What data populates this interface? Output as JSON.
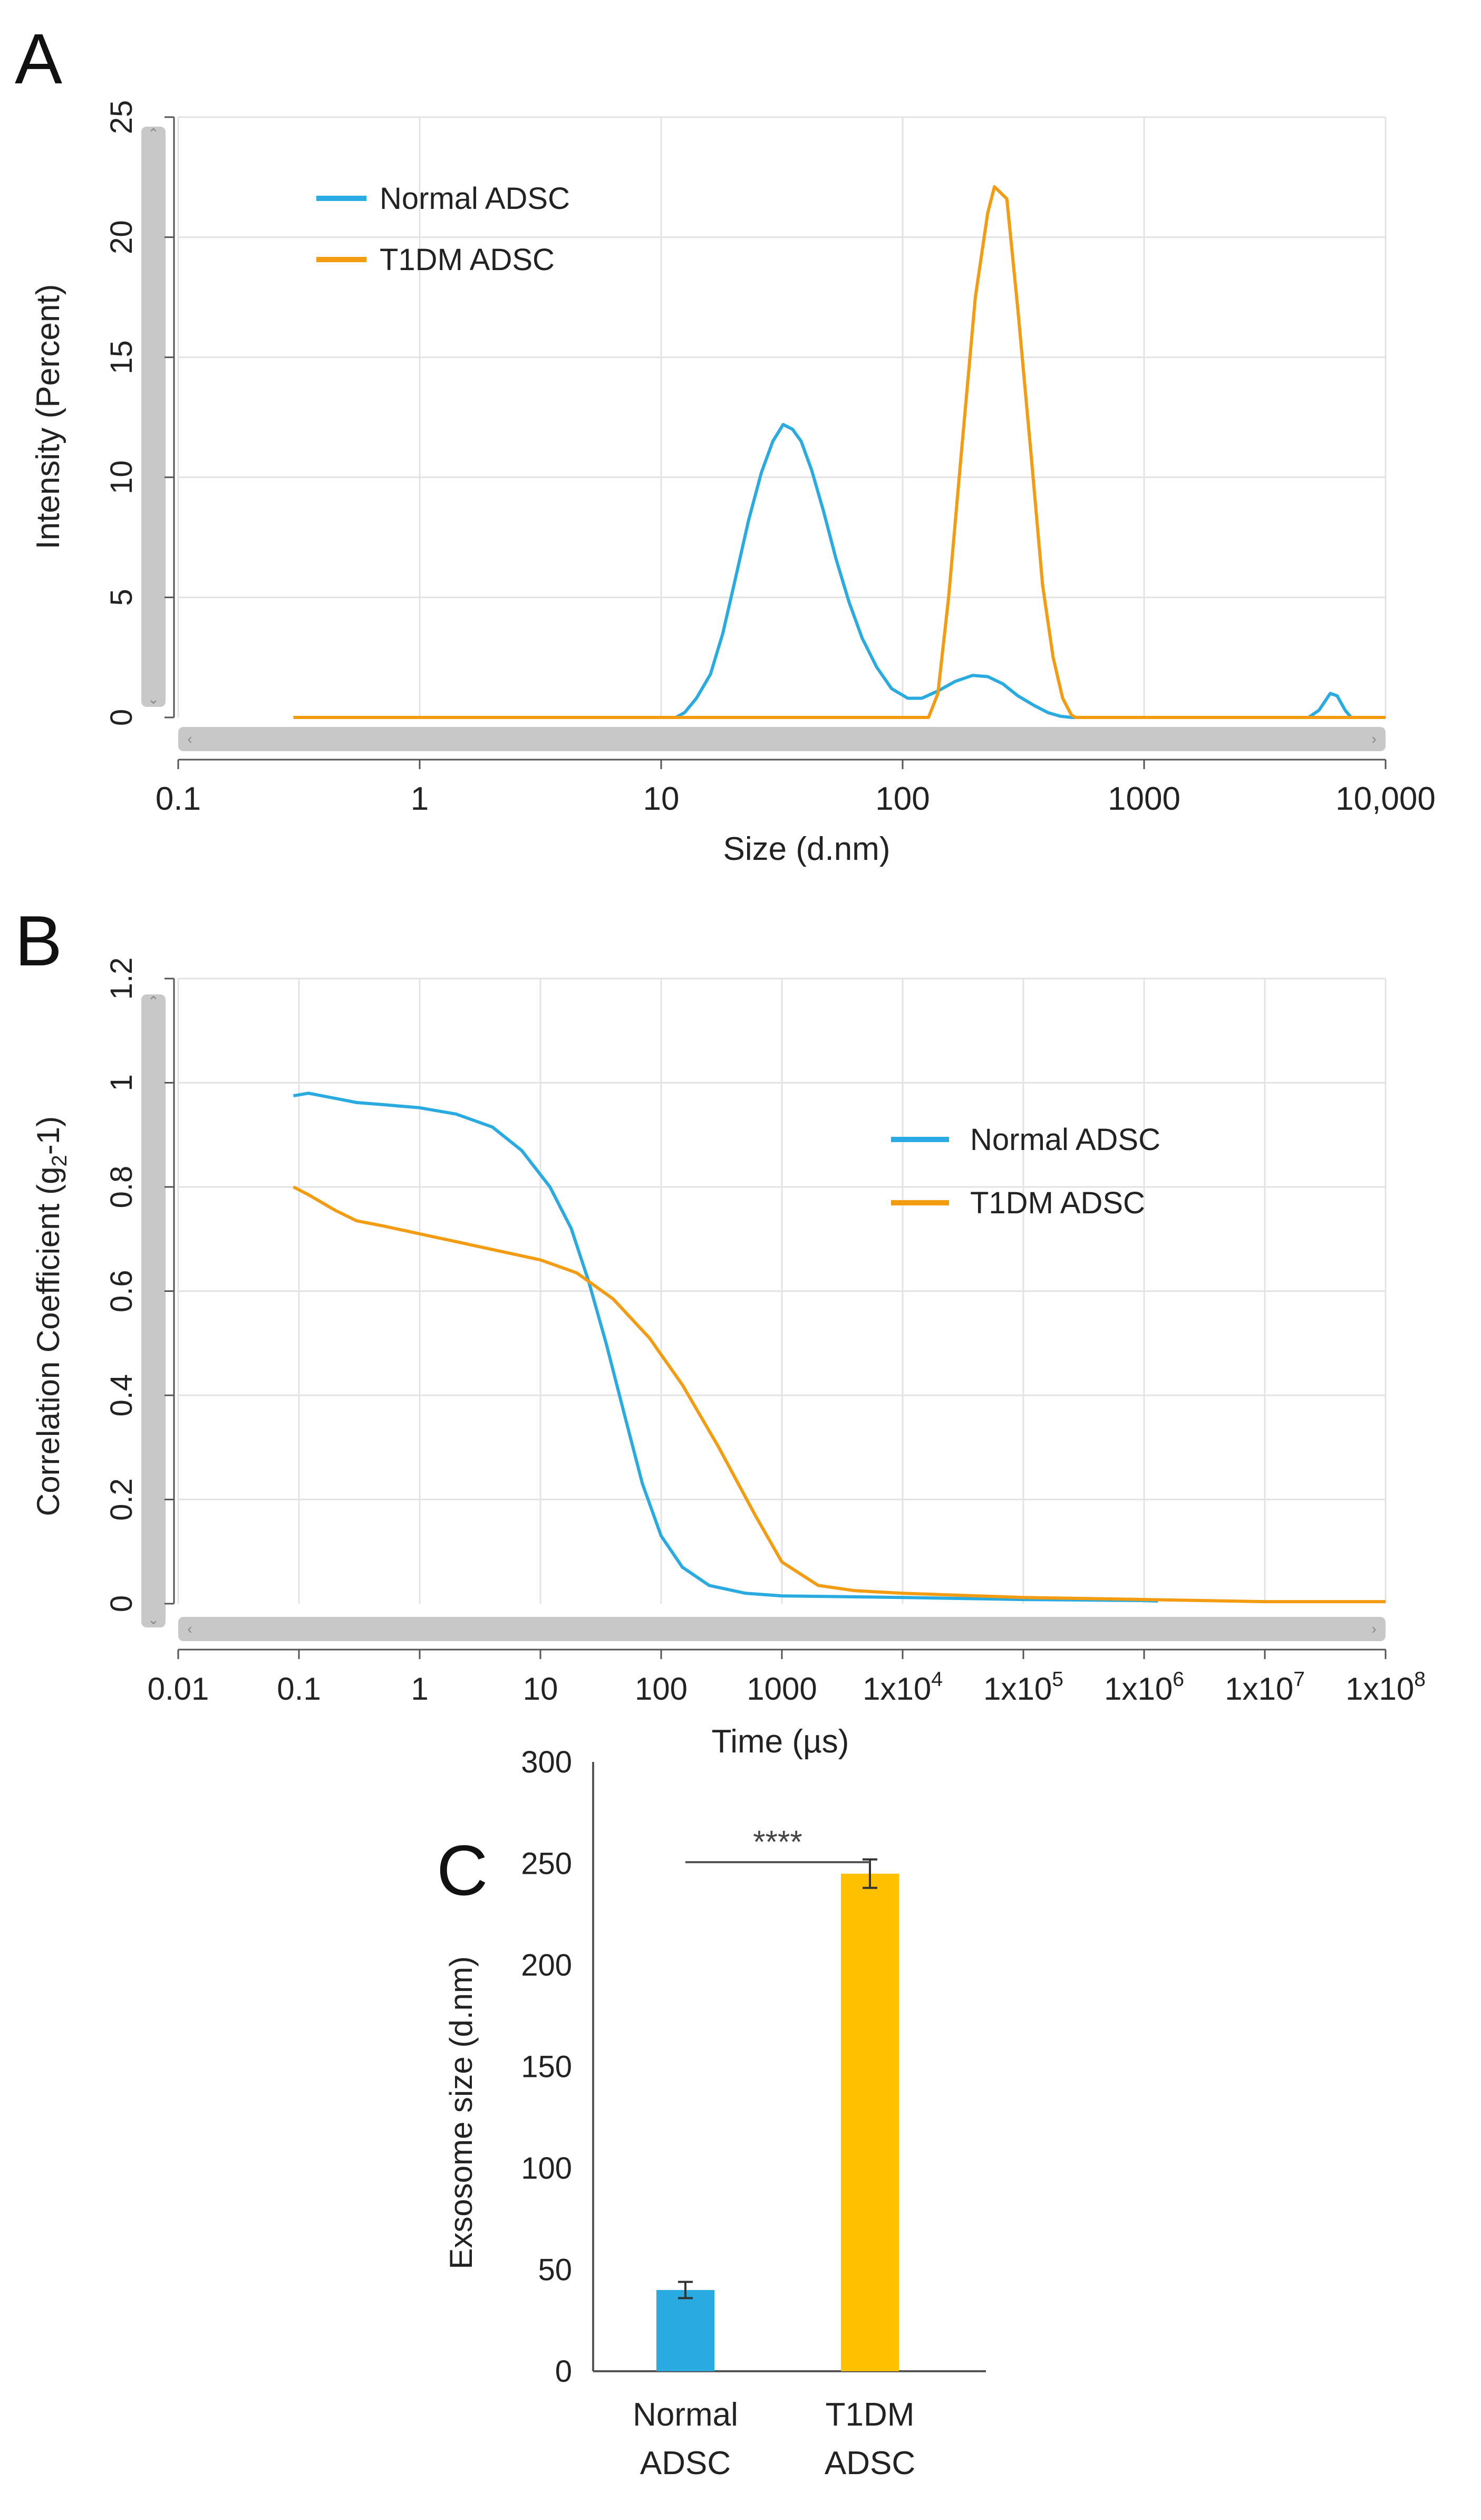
{
  "colors": {
    "normal": "#29ABE2",
    "t1dm": "#F39C12",
    "t1dm_bar": "#FFC000",
    "grid": "#E3E3E3",
    "axis": "#555555",
    "text": "#222222",
    "scrollbar": "#C8C8C8"
  },
  "chart_data": [
    {
      "panel": "A",
      "type": "line",
      "xscale": "log",
      "xlabel": "Size (d.nm)",
      "ylabel": "Intensity (Percent)",
      "xlim": [
        0.1,
        10000
      ],
      "ylim": [
        0,
        25
      ],
      "xticks": [
        0.1,
        1,
        10,
        100,
        1000,
        10000
      ],
      "xtick_labels": [
        "0.1",
        "1",
        "10",
        "100",
        "1000",
        "10,000"
      ],
      "yticks": [
        0,
        5,
        10,
        15,
        20,
        25
      ],
      "ytick_labels": [
        "0",
        "5",
        "10",
        "15",
        "20",
        "25"
      ],
      "legend": "top-left",
      "series": [
        {
          "name": "Normal ADSC",
          "color_key": "normal",
          "points": [
            [
              0.3,
              0
            ],
            [
              11.5,
              0
            ],
            [
              12.5,
              0.2
            ],
            [
              14,
              0.8
            ],
            [
              16,
              1.8
            ],
            [
              18,
              3.5
            ],
            [
              20,
              5.5
            ],
            [
              23,
              8.2
            ],
            [
              26,
              10.2
            ],
            [
              29,
              11.5
            ],
            [
              32,
              12.2
            ],
            [
              35,
              12.0
            ],
            [
              38,
              11.5
            ],
            [
              42,
              10.3
            ],
            [
              47,
              8.6
            ],
            [
              53,
              6.6
            ],
            [
              60,
              4.8
            ],
            [
              68,
              3.3
            ],
            [
              78,
              2.1
            ],
            [
              90,
              1.2
            ],
            [
              105,
              0.8
            ],
            [
              120,
              0.8
            ],
            [
              140,
              1.1
            ],
            [
              165,
              1.5
            ],
            [
              195,
              1.75
            ],
            [
              225,
              1.7
            ],
            [
              260,
              1.4
            ],
            [
              300,
              0.9
            ],
            [
              350,
              0.5
            ],
            [
              400,
              0.2
            ],
            [
              450,
              0.05
            ],
            [
              500,
              0
            ],
            [
              4800,
              0
            ],
            [
              5300,
              0.3
            ],
            [
              5900,
              1.0
            ],
            [
              6300,
              0.9
            ],
            [
              6800,
              0.3
            ],
            [
              7200,
              0
            ],
            [
              10000,
              0
            ]
          ]
        },
        {
          "name": "T1DM ADSC",
          "color_key": "t1dm",
          "points": [
            [
              0.3,
              0
            ],
            [
              128,
              0
            ],
            [
              140,
              1.0
            ],
            [
              155,
              5.0
            ],
            [
              175,
              11.0
            ],
            [
              200,
              17.5
            ],
            [
              225,
              21.0
            ],
            [
              240,
              22.1
            ],
            [
              270,
              21.6
            ],
            [
              300,
              17.0
            ],
            [
              340,
              11.0
            ],
            [
              380,
              5.5
            ],
            [
              420,
              2.5
            ],
            [
              460,
              0.8
            ],
            [
              500,
              0.1
            ],
            [
              520,
              0
            ],
            [
              10000,
              0
            ]
          ]
        }
      ]
    },
    {
      "panel": "B",
      "type": "line",
      "xscale": "log",
      "xlabel": "Time (µs)",
      "ylabel_main": "Correlation Coefficient (g",
      "ylabel_sub": "2",
      "ylabel_tail": "-1)",
      "xlim": [
        0.01,
        100000000
      ],
      "ylim": [
        0,
        1.2
      ],
      "xticks": [
        0.01,
        0.1,
        1,
        10,
        100,
        1000,
        10000,
        100000,
        1000000,
        10000000,
        100000000
      ],
      "xtick_labels": [
        "0.01",
        "0.1",
        "1",
        "10",
        "100",
        "1000",
        "1x10",
        "1x10",
        "1x10",
        "1x10",
        "1x10"
      ],
      "xtick_exponents": [
        "",
        "",
        "",
        "",
        "",
        "",
        "4",
        "5",
        "6",
        "7",
        "8"
      ],
      "yticks": [
        0,
        0.2,
        0.4,
        0.6,
        0.8,
        1,
        1.2
      ],
      "ytick_labels": [
        "0",
        "0.2",
        "0.4",
        "0.6",
        "0.8",
        "1",
        "1.2"
      ],
      "legend": "upper-right",
      "series": [
        {
          "name": "Normal ADSC",
          "color_key": "normal",
          "points": [
            [
              0.09,
              0.975
            ],
            [
              0.12,
              0.98
            ],
            [
              0.2,
              0.97
            ],
            [
              0.3,
              0.962
            ],
            [
              0.5,
              0.958
            ],
            [
              1,
              0.952
            ],
            [
              2,
              0.94
            ],
            [
              4,
              0.915
            ],
            [
              7,
              0.87
            ],
            [
              12,
              0.8
            ],
            [
              18,
              0.72
            ],
            [
              25,
              0.62
            ],
            [
              35,
              0.5
            ],
            [
              50,
              0.36
            ],
            [
              70,
              0.23
            ],
            [
              100,
              0.13
            ],
            [
              150,
              0.07
            ],
            [
              250,
              0.035
            ],
            [
              500,
              0.02
            ],
            [
              1000,
              0.015
            ],
            [
              10000,
              0.012
            ],
            [
              100000,
              0.008
            ],
            [
              1000000,
              0.006
            ],
            [
              1300000,
              0.005
            ]
          ]
        },
        {
          "name": "T1DM ADSC",
          "color_key": "t1dm",
          "points": [
            [
              0.09,
              0.8
            ],
            [
              0.12,
              0.785
            ],
            [
              0.2,
              0.755
            ],
            [
              0.3,
              0.735
            ],
            [
              0.5,
              0.725
            ],
            [
              1,
              0.71
            ],
            [
              2,
              0.695
            ],
            [
              5,
              0.675
            ],
            [
              10,
              0.66
            ],
            [
              20,
              0.635
            ],
            [
              40,
              0.585
            ],
            [
              80,
              0.51
            ],
            [
              150,
              0.42
            ],
            [
              300,
              0.3
            ],
            [
              600,
              0.17
            ],
            [
              1000,
              0.08
            ],
            [
              2000,
              0.035
            ],
            [
              4000,
              0.025
            ],
            [
              10000,
              0.02
            ],
            [
              100000,
              0.012
            ],
            [
              1000000,
              0.008
            ],
            [
              10000000,
              0.004
            ],
            [
              100000000,
              0.004
            ]
          ]
        }
      ]
    },
    {
      "panel": "C",
      "type": "bar",
      "categories": [
        "Normal ADSC",
        "T1DM ADSC"
      ],
      "category_lines": [
        [
          "Normal",
          "ADSC"
        ],
        [
          "T1DM",
          "ADSC"
        ]
      ],
      "values": [
        40,
        245
      ],
      "errors": [
        4,
        7
      ],
      "color_keys": [
        "normal",
        "t1dm_bar"
      ],
      "ylabel": "Exsosome size (d.nm)",
      "ylim": [
        0,
        300
      ],
      "yticks": [
        0,
        50,
        100,
        150,
        200,
        250,
        300
      ],
      "ytick_labels": [
        "0",
        "50",
        "100",
        "150",
        "200",
        "250",
        "300"
      ],
      "significance": "****"
    }
  ]
}
